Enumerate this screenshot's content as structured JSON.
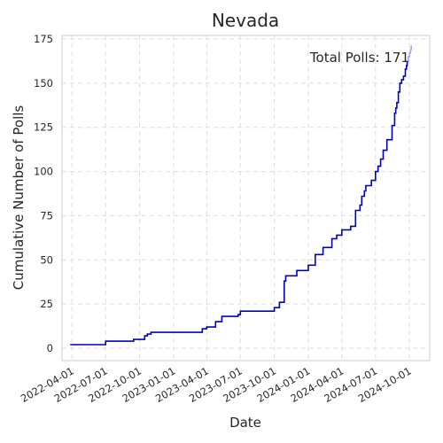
{
  "chart_data": {
    "type": "line",
    "step": true,
    "title": "Nevada",
    "xlabel": "Date",
    "ylabel": "Cumulative Number of Polls",
    "annotation": "Total Polls: 171",
    "grid": true,
    "xlim": [
      "2022-03-05",
      "2024-11-25"
    ],
    "ylim": [
      -7,
      177
    ],
    "yticks": [
      0,
      25,
      50,
      75,
      100,
      125,
      150,
      175
    ],
    "xticks": [
      "2022-04-01",
      "2022-07-01",
      "2022-10-01",
      "2023-01-01",
      "2023-04-01",
      "2023-07-01",
      "2023-10-01",
      "2024-01-01",
      "2024-04-01",
      "2024-07-01",
      "2024-10-01"
    ],
    "colors": {
      "main": "#0000cc",
      "recent": "#aaaaee",
      "grid": "#dddddd",
      "spine": "#cccccc"
    },
    "series": [
      {
        "segment": "main",
        "x": [
          "2022-03-27",
          "2022-07-01",
          "2022-07-01",
          "2022-09-15",
          "2022-09-15",
          "2022-10-15",
          "2022-10-15",
          "2022-10-22",
          "2022-10-22",
          "2022-11-01",
          "2022-11-01",
          "2023-03-20",
          "2023-03-20",
          "2023-04-01",
          "2023-04-01",
          "2023-04-25",
          "2023-04-25",
          "2023-05-12",
          "2023-05-12",
          "2023-06-25",
          "2023-06-25",
          "2023-07-01",
          "2023-07-01",
          "2023-10-01",
          "2023-10-01",
          "2023-10-15",
          "2023-10-15",
          "2023-10-28",
          "2023-10-28",
          "2023-11-01",
          "2023-11-01",
          "2023-12-01",
          "2023-12-01",
          "2024-01-01",
          "2024-01-01",
          "2024-01-20",
          "2024-01-20",
          "2024-02-10",
          "2024-02-10",
          "2024-03-05",
          "2024-03-05",
          "2024-03-18",
          "2024-03-18",
          "2024-04-01",
          "2024-04-01",
          "2024-04-25",
          "2024-04-25",
          "2024-05-08",
          "2024-05-08",
          "2024-05-20",
          "2024-05-20",
          "2024-05-25",
          "2024-05-25",
          "2024-06-01",
          "2024-06-01",
          "2024-06-05",
          "2024-06-05",
          "2024-06-20",
          "2024-06-20",
          "2024-07-01",
          "2024-07-01",
          "2024-07-08",
          "2024-07-08",
          "2024-07-15",
          "2024-07-15",
          "2024-07-22",
          "2024-07-22",
          "2024-08-01",
          "2024-08-01",
          "2024-08-15",
          "2024-08-15",
          "2024-08-22",
          "2024-08-22",
          "2024-08-25",
          "2024-08-25",
          "2024-08-28",
          "2024-08-28",
          "2024-09-01",
          "2024-09-01",
          "2024-09-05",
          "2024-09-05",
          "2024-09-10",
          "2024-09-10",
          "2024-09-15",
          "2024-09-15",
          "2024-09-20",
          "2024-09-20",
          "2024-09-23",
          "2024-09-23",
          "2024-09-25",
          "2024-09-25",
          "2024-09-26"
        ],
        "y": [
          2,
          2,
          4,
          4,
          5,
          5,
          7,
          7,
          8,
          8,
          9,
          9,
          11,
          11,
          12,
          12,
          15,
          15,
          18,
          18,
          19,
          19,
          21,
          21,
          23,
          23,
          26,
          26,
          38,
          38,
          41,
          41,
          44,
          44,
          47,
          47,
          53,
          53,
          57,
          57,
          62,
          62,
          64,
          64,
          67,
          67,
          69,
          69,
          78,
          78,
          81,
          81,
          86,
          86,
          89,
          89,
          92,
          92,
          95,
          95,
          100,
          100,
          103,
          103,
          107,
          107,
          112,
          112,
          118,
          118,
          126,
          126,
          133,
          133,
          136,
          136,
          139,
          139,
          145,
          145,
          150,
          150,
          152,
          152,
          154,
          154,
          158,
          158,
          160,
          160,
          162,
          162
        ]
      },
      {
        "segment": "recent",
        "x": [
          "2024-09-26",
          "2024-09-28",
          "2024-09-28",
          "2024-10-01",
          "2024-10-01",
          "2024-10-04",
          "2024-10-04",
          "2024-10-06",
          "2024-10-06",
          "2024-10-08"
        ],
        "y": [
          162,
          162,
          165,
          165,
          167,
          167,
          169,
          169,
          171,
          171
        ]
      }
    ]
  }
}
